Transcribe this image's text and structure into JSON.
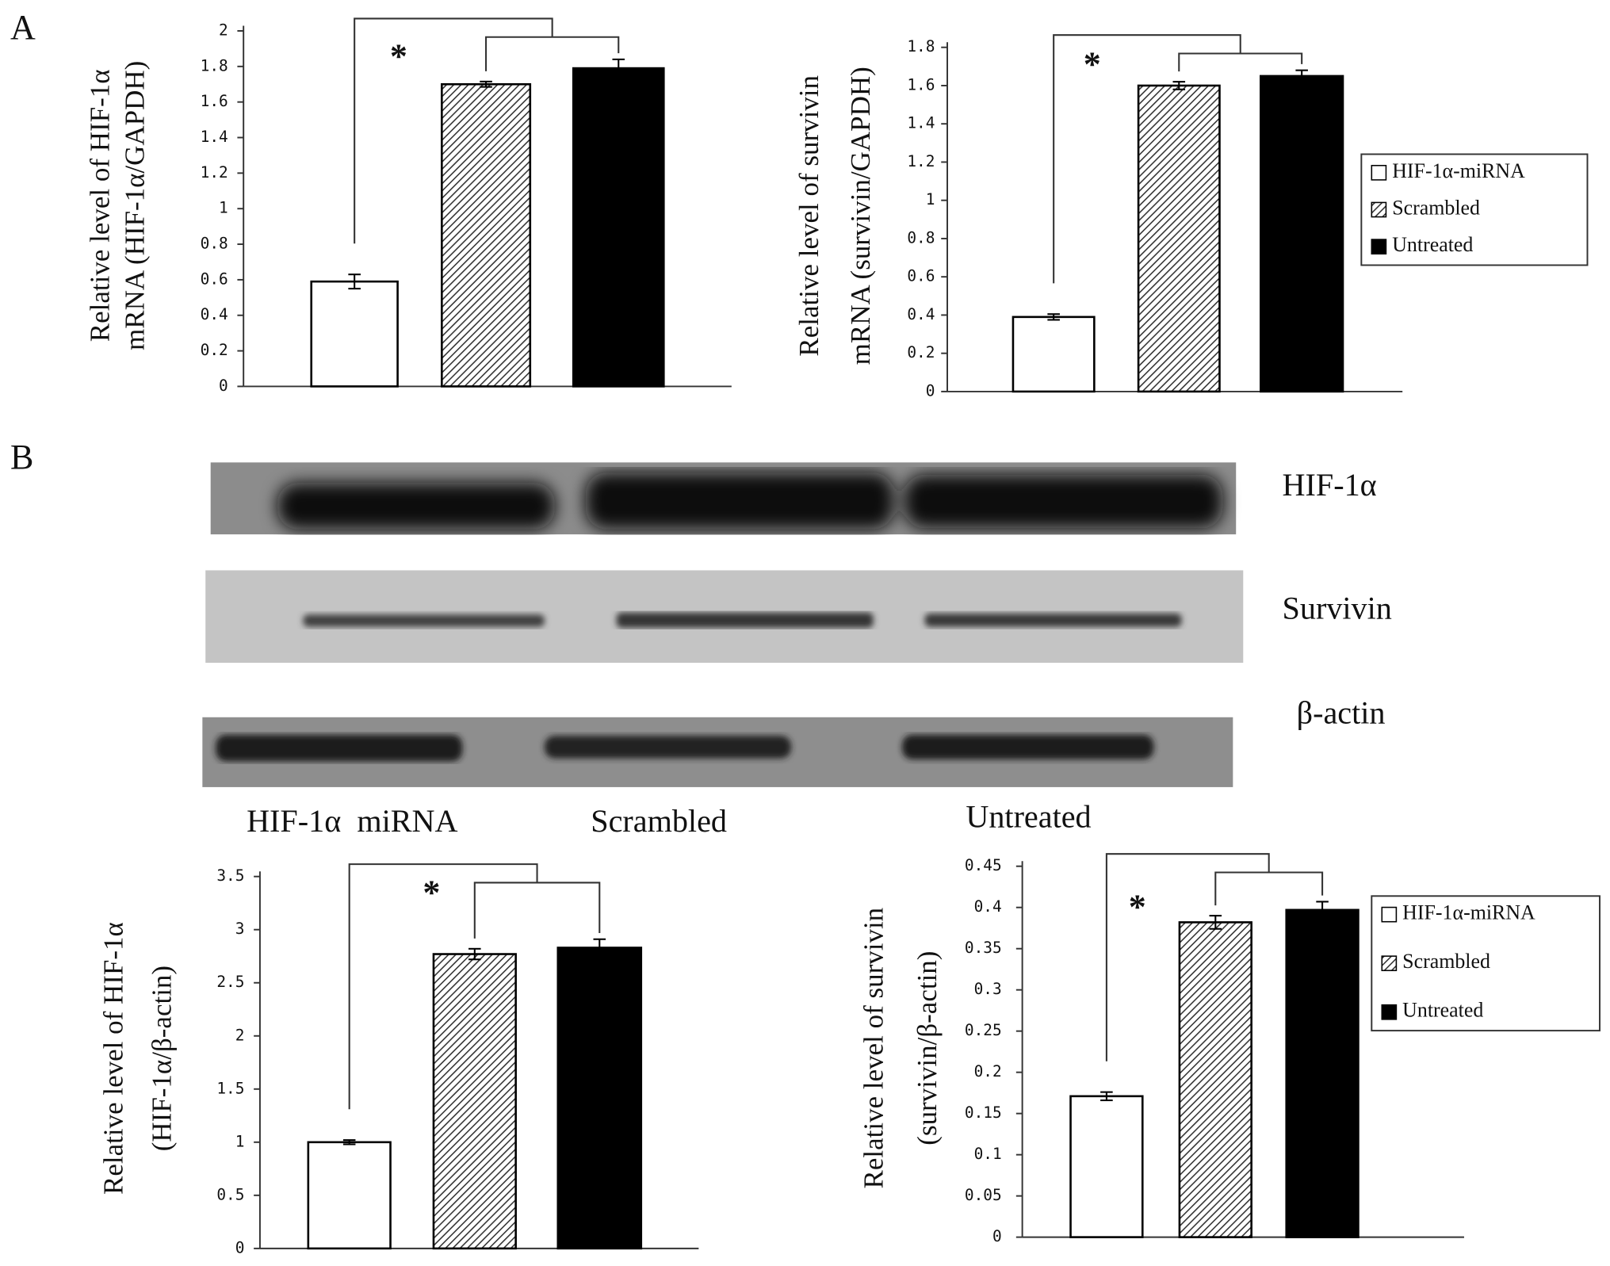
{
  "panels": [
    "A",
    "B"
  ],
  "blot": {
    "bands": [
      "HIF-1α",
      "Survivin",
      "β-actin"
    ],
    "lanes": [
      "HIF-1α  miRNA",
      "Scrambled",
      "Untreated"
    ]
  },
  "chart_data": [
    {
      "type": "bar",
      "ylabel": [
        "Relative level of HIF-1α",
        "mRNA (HIF-1α/GAPDH)"
      ],
      "annotation": "*",
      "ylim": [
        0,
        2
      ],
      "yticks": [
        0,
        0.2,
        0.4,
        0.6,
        0.8,
        1,
        1.2,
        1.4,
        1.6,
        1.8,
        2
      ],
      "series": [
        {
          "color": "#ffffff",
          "values": [
            0.59
          ],
          "errors": [
            0.04
          ]
        },
        {
          "color": "hatch",
          "values": [
            1.7
          ],
          "errors": [
            0.015
          ]
        },
        {
          "color": "#000000",
          "values": [
            1.79
          ],
          "errors": [
            0.05
          ]
        }
      ]
    },
    {
      "type": "bar",
      "ylabel": [
        "Relative level of survivin",
        "mRNA (survivin/GAPDH)"
      ],
      "annotation": "*",
      "ylim": [
        0,
        1.8
      ],
      "yticks": [
        0,
        0.2,
        0.4,
        0.6,
        0.8,
        1,
        1.2,
        1.4,
        1.6,
        1.8
      ],
      "legend": "right",
      "series": [
        {
          "name": "HIF-1α-miRNA",
          "color": "#ffffff",
          "values": [
            0.39
          ],
          "errors": [
            0.015
          ]
        },
        {
          "name": "Scrambled",
          "color": "hatch",
          "values": [
            1.6
          ],
          "errors": [
            0.02
          ]
        },
        {
          "name": "Untreated",
          "color": "#000000",
          "values": [
            1.65
          ],
          "errors": [
            0.03
          ]
        }
      ]
    },
    {
      "type": "bar",
      "ylabel": [
        "Relative level of HIF-1α",
        "(HIF-1α/β-actin)"
      ],
      "annotation": "*",
      "ylim": [
        0,
        3.5
      ],
      "yticks": [
        0,
        0.5,
        1,
        1.5,
        2,
        2.5,
        3,
        3.5
      ],
      "series": [
        {
          "color": "#ffffff",
          "values": [
            1.0
          ],
          "errors": [
            0.02
          ]
        },
        {
          "color": "hatch",
          "values": [
            2.77
          ],
          "errors": [
            0.05
          ]
        },
        {
          "color": "#000000",
          "values": [
            2.83
          ],
          "errors": [
            0.08
          ]
        }
      ]
    },
    {
      "type": "bar",
      "ylabel": [
        "Relative level of survivin",
        "(survivin/β-actin)"
      ],
      "annotation": "*",
      "ylim": [
        0,
        0.45
      ],
      "yticks": [
        0,
        0.05,
        0.1,
        0.15,
        0.2,
        0.25,
        0.3,
        0.35,
        0.4,
        0.45
      ],
      "legend": "right",
      "series": [
        {
          "name": "HIF-1α-miRNA",
          "color": "#ffffff",
          "values": [
            0.171
          ],
          "errors": [
            0.005
          ]
        },
        {
          "name": "Scrambled",
          "color": "hatch",
          "values": [
            0.382
          ],
          "errors": [
            0.008
          ]
        },
        {
          "name": "Untreated",
          "color": "#000000",
          "values": [
            0.397
          ],
          "errors": [
            0.01
          ]
        }
      ]
    }
  ]
}
